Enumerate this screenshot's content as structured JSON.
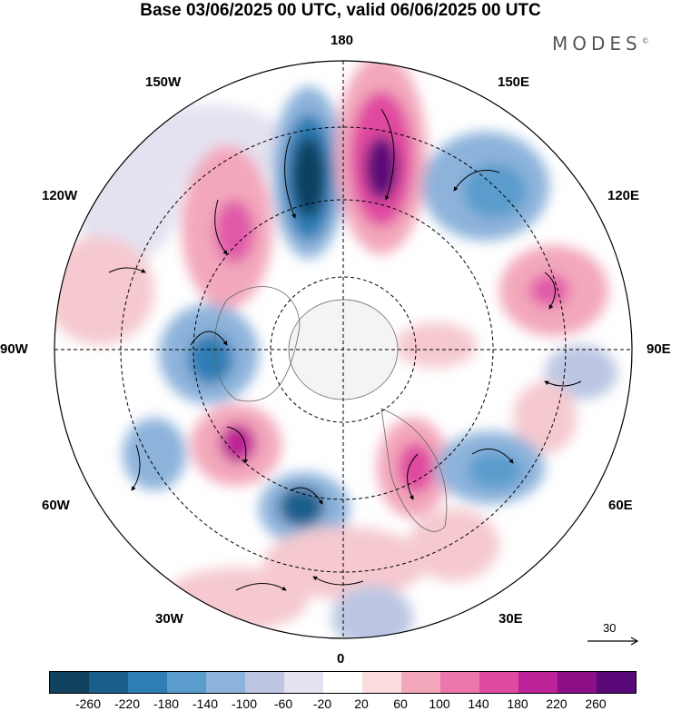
{
  "title": "Base 03/06/2025 00 UTC, valid 06/06/2025 00 UTC",
  "brand": "MODES",
  "brand_mark": "©",
  "map": {
    "projection": "north-polar-stereographic",
    "longitude_labels": {
      "top": "180",
      "bottom": "0",
      "left": "90W",
      "right": "90E",
      "upper_left_1": "150W",
      "upper_left_2": "120W",
      "upper_right_1": "150E",
      "upper_right_2": "120E",
      "lower_left_1": "60W",
      "lower_left_2": "30W",
      "lower_right_1": "60E",
      "lower_right_2": "30E"
    },
    "reference_vector_label": "30",
    "anomaly_colors": {
      "neg_strong": "#1b5a80",
      "neg_mid": "#4f8fc4",
      "neg_weak": "#b7c6e4",
      "pos_weak": "#f5c9cf",
      "pos_mid": "#e05aa8",
      "pos_strong": "#7a1a7f"
    }
  },
  "colorbar": {
    "colors": [
      "#10415e",
      "#1a5f8c",
      "#2e7db5",
      "#5a9ccc",
      "#8db3db",
      "#bcc6e3",
      "#e4e2f0",
      "#ffffff",
      "#fbdcdf",
      "#f3a7bb",
      "#ec78ab",
      "#e04aa0",
      "#bd2396",
      "#8c0f88",
      "#5a0a78"
    ],
    "ticks": [
      "-260",
      "-220",
      "-180",
      "-140",
      "-100",
      "-60",
      "-20",
      "20",
      "60",
      "100",
      "140",
      "180",
      "220",
      "260"
    ]
  }
}
